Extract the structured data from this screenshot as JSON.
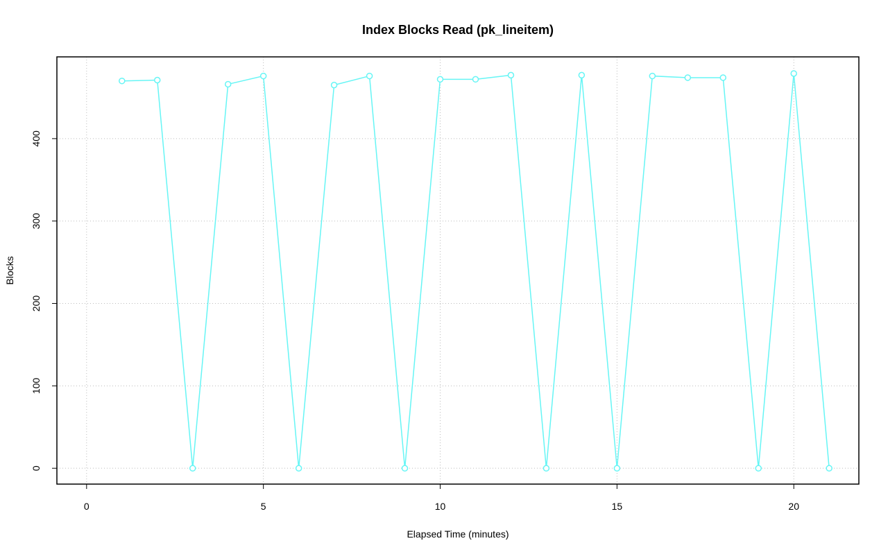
{
  "chart_data": {
    "type": "line",
    "title": "Index Blocks Read (pk_lineitem)",
    "x_label": "Elapsed Time (minutes)",
    "y_label": "Blocks",
    "x": [
      1,
      2,
      3,
      4,
      5,
      6,
      7,
      8,
      9,
      10,
      11,
      12,
      13,
      14,
      15,
      16,
      17,
      18,
      19,
      20,
      21
    ],
    "series": [
      {
        "name": "pk_lineitem",
        "color": "#66f5f5",
        "values": [
          470,
          471,
          0,
          466,
          476,
          0,
          465,
          476,
          0,
          472,
          472,
          477,
          0,
          477,
          0,
          476,
          474,
          474,
          0,
          479,
          0
        ]
      }
    ],
    "xlim": [
      -0.84,
      21.84
    ],
    "xticks": [
      0,
      5,
      10,
      15,
      20
    ],
    "ylim": [
      -19.2,
      499.2
    ],
    "yticks": [
      0,
      100,
      200,
      300,
      400
    ],
    "grid": true
  }
}
